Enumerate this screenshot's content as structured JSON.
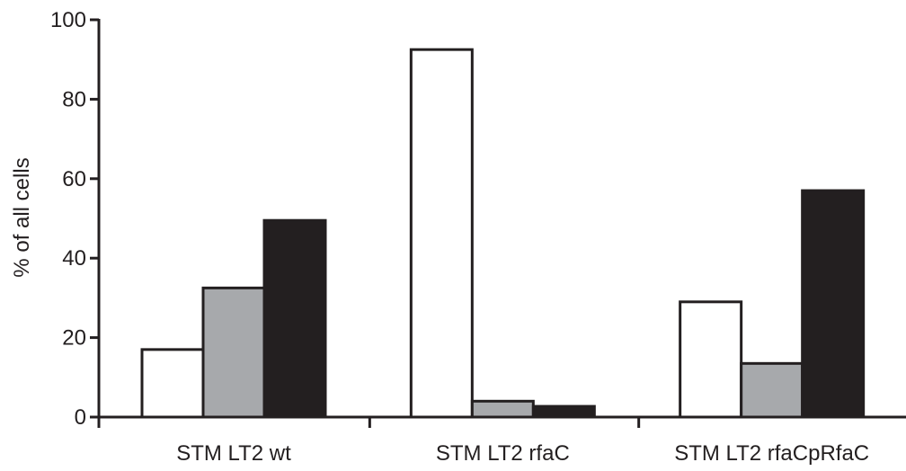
{
  "chart_data": {
    "type": "bar",
    "title": "",
    "xlabel": "",
    "ylabel": "% of all cells",
    "ylim": [
      0,
      100
    ],
    "yticks": [
      0,
      20,
      40,
      60,
      80,
      100
    ],
    "grid": false,
    "legend": "none",
    "categories": [
      "STM LT2 wt",
      "STM LT2 rfaC",
      "STM LT2 rfaCpRfaC"
    ],
    "series": [
      {
        "color": "#ffffff",
        "values": [
          17,
          92.5,
          29
        ]
      },
      {
        "color": "#a7a9ac",
        "values": [
          32.5,
          4,
          13.5
        ]
      },
      {
        "color": "#231f20",
        "values": [
          49.5,
          2.7,
          57
        ]
      }
    ]
  }
}
